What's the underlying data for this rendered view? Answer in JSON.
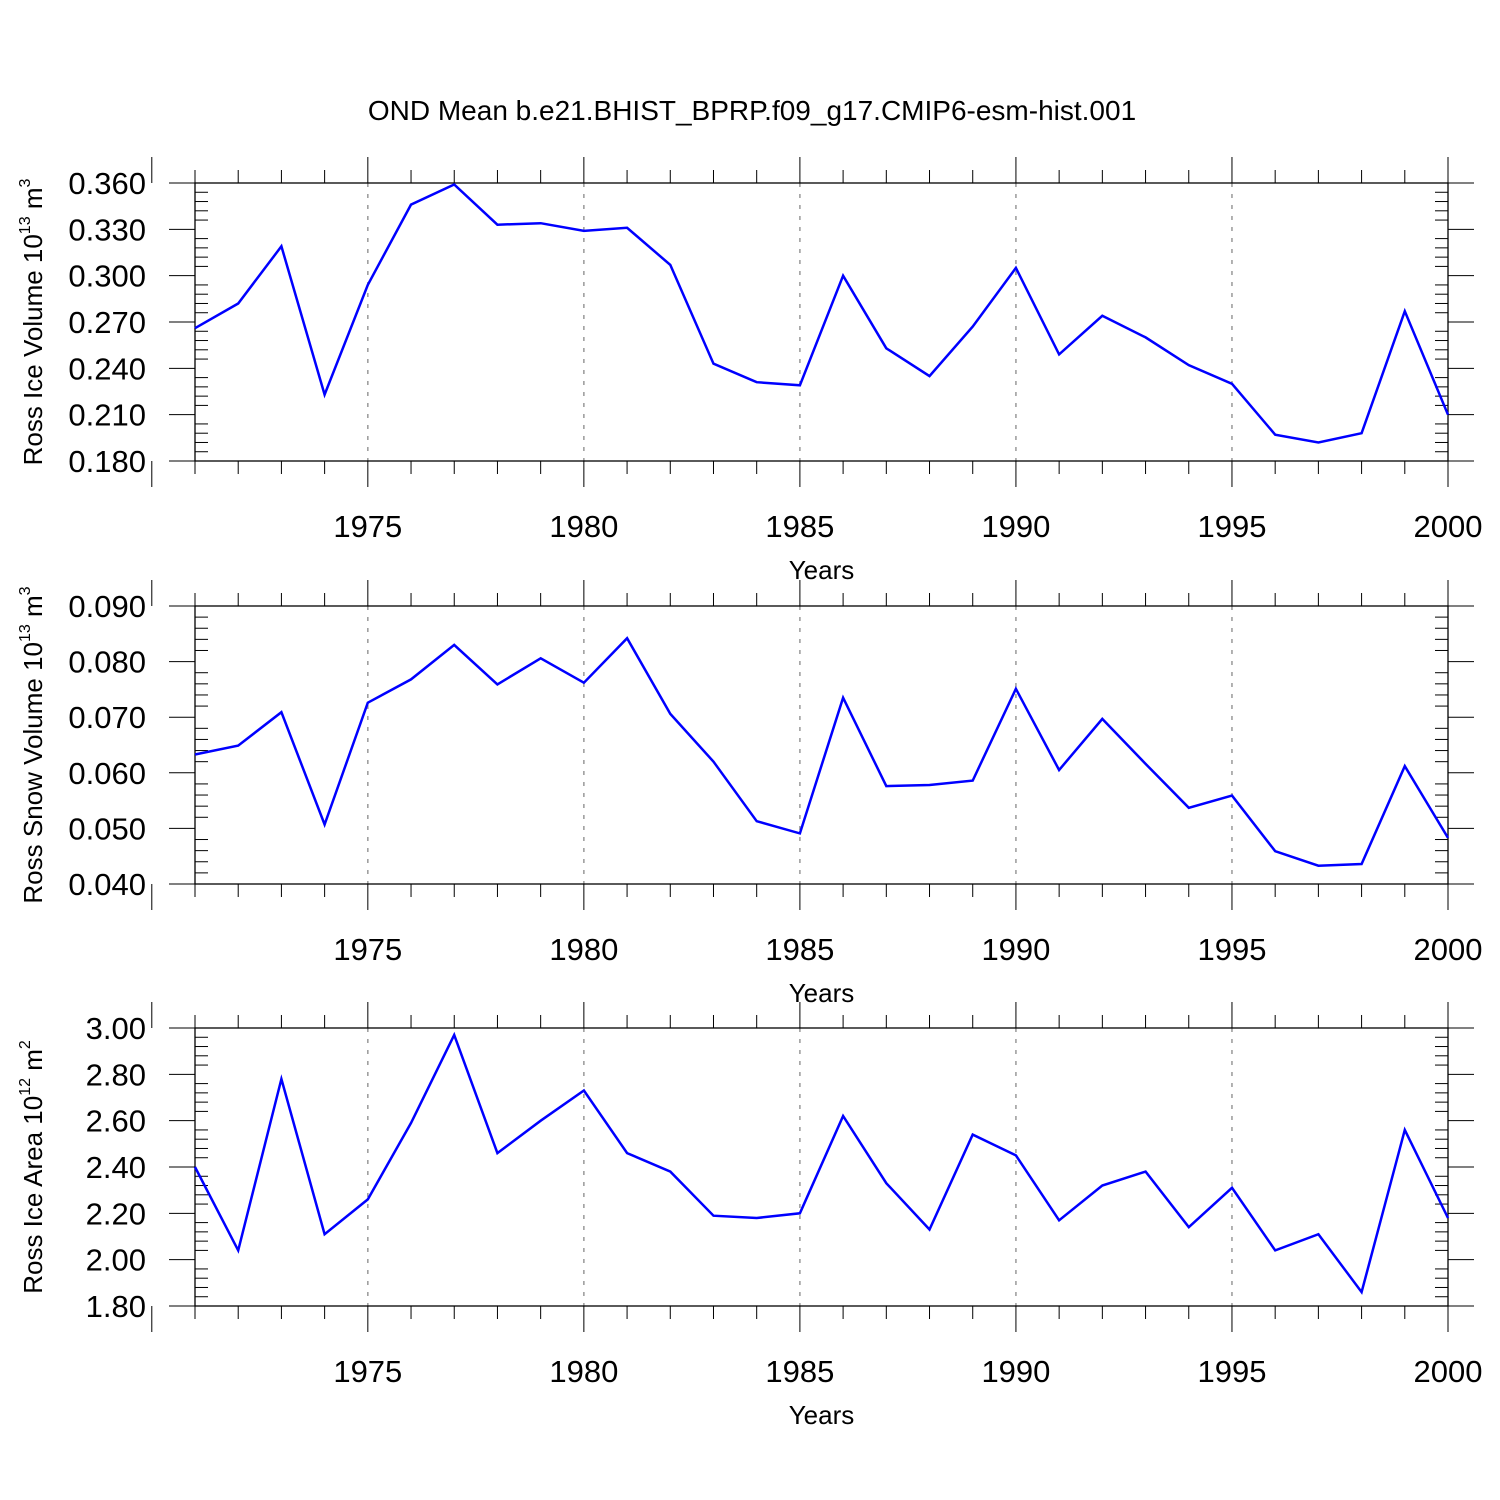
{
  "title": "OND Mean b.e21.BHIST_BPRP.f09_g17.CMIP6-esm-hist.001",
  "colors": {
    "line": "#0000ff",
    "axes": "#000000",
    "grid": "#999999",
    "background": "#ffffff"
  },
  "chart_data": [
    {
      "type": "line",
      "xlabel": "Years",
      "ylabel_parts": {
        "prefix": "Ross Ice Volume 10",
        "exp": "13",
        "mid": " m",
        "unit_exp": "3"
      },
      "xlim": [
        1971,
        2000
      ],
      "ylim": [
        0.18,
        0.36
      ],
      "xticks": [
        "1975",
        "1980",
        "1985",
        "1990",
        "1995",
        "2000"
      ],
      "yticks": [
        "0.180",
        "0.210",
        "0.240",
        "0.270",
        "0.300",
        "0.330",
        "0.360"
      ],
      "grid": "vertical dashed at major x ticks",
      "x": [
        1971,
        1972,
        1973,
        1974,
        1975,
        1976,
        1977,
        1978,
        1979,
        1980,
        1981,
        1982,
        1983,
        1984,
        1985,
        1986,
        1987,
        1988,
        1989,
        1990,
        1991,
        1992,
        1993,
        1994,
        1995,
        1996,
        1997,
        1998,
        1999,
        2000
      ],
      "series": [
        {
          "values": [
            0.266,
            0.282,
            0.319,
            0.223,
            0.294,
            0.346,
            0.359,
            0.333,
            0.334,
            0.329,
            0.331,
            0.307,
            0.243,
            0.231,
            0.229,
            0.3,
            0.253,
            0.235,
            0.267,
            0.305,
            0.249,
            0.274,
            0.26,
            0.242,
            0.23,
            0.197,
            0.192,
            0.198,
            0.277,
            0.21
          ]
        }
      ]
    },
    {
      "type": "line",
      "xlabel": "Years",
      "ylabel_parts": {
        "prefix": "Ross Snow Volume 10",
        "exp": "13",
        "mid": " m",
        "unit_exp": "3"
      },
      "xlim": [
        1971,
        2000
      ],
      "ylim": [
        0.04,
        0.09
      ],
      "xticks": [
        "1975",
        "1980",
        "1985",
        "1990",
        "1995",
        "2000"
      ],
      "yticks": [
        "0.040",
        "0.050",
        "0.060",
        "0.070",
        "0.080",
        "0.090"
      ],
      "grid": "vertical dashed at major x ticks",
      "x": [
        1971,
        1972,
        1973,
        1974,
        1975,
        1976,
        1977,
        1978,
        1979,
        1980,
        1981,
        1982,
        1983,
        1984,
        1985,
        1986,
        1987,
        1988,
        1989,
        1990,
        1991,
        1992,
        1993,
        1994,
        1995,
        1996,
        1997,
        1998,
        1999,
        2000
      ],
      "series": [
        {
          "values": [
            0.0633,
            0.0649,
            0.0709,
            0.0507,
            0.0726,
            0.0768,
            0.083,
            0.0759,
            0.0806,
            0.0762,
            0.0842,
            0.0706,
            0.062,
            0.0513,
            0.0491,
            0.0735,
            0.0576,
            0.0578,
            0.0586,
            0.0751,
            0.0605,
            0.0697,
            0.0616,
            0.0537,
            0.0559,
            0.0459,
            0.0433,
            0.0436,
            0.0612,
            0.0483
          ]
        }
      ]
    },
    {
      "type": "line",
      "xlabel": "Years",
      "ylabel_parts": {
        "prefix": "Ross Ice Area 10",
        "exp": "12",
        "mid": " m",
        "unit_exp": "2"
      },
      "xlim": [
        1971,
        2000
      ],
      "ylim": [
        1.8,
        3.0
      ],
      "xticks": [
        "1975",
        "1980",
        "1985",
        "1990",
        "1995",
        "2000"
      ],
      "yticks": [
        "1.80",
        "2.00",
        "2.20",
        "2.40",
        "2.60",
        "2.80",
        "3.00"
      ],
      "grid": "vertical dashed at major x ticks",
      "x": [
        1971,
        1972,
        1973,
        1974,
        1975,
        1976,
        1977,
        1978,
        1979,
        1980,
        1981,
        1982,
        1983,
        1984,
        1985,
        1986,
        1987,
        1988,
        1989,
        1990,
        1991,
        1992,
        1993,
        1994,
        1995,
        1996,
        1997,
        1998,
        1999,
        2000
      ],
      "series": [
        {
          "values": [
            2.4,
            2.04,
            2.78,
            2.11,
            2.26,
            2.59,
            2.97,
            2.46,
            2.6,
            2.73,
            2.46,
            2.38,
            2.19,
            2.18,
            2.2,
            2.62,
            2.33,
            2.13,
            2.54,
            2.45,
            2.17,
            2.32,
            2.38,
            2.14,
            2.31,
            2.04,
            2.11,
            1.86,
            2.56,
            2.18
          ]
        }
      ]
    }
  ]
}
